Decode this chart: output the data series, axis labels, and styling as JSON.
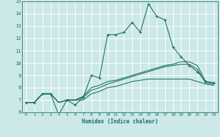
{
  "title": "",
  "xlabel": "Humidex (Indice chaleur)",
  "ylabel": "",
  "xlim": [
    -0.5,
    23.5
  ],
  "ylim": [
    6,
    15
  ],
  "xticks": [
    0,
    1,
    2,
    3,
    4,
    5,
    6,
    7,
    8,
    9,
    10,
    11,
    12,
    13,
    14,
    15,
    16,
    17,
    18,
    19,
    20,
    21,
    22,
    23
  ],
  "yticks": [
    6,
    7,
    8,
    9,
    10,
    11,
    12,
    13,
    14,
    15
  ],
  "bg_color": "#cce8e8",
  "line_color": "#1a6e64",
  "grid_color": "#b0d8d8",
  "lines": [
    {
      "x": [
        0,
        1,
        2,
        3,
        4,
        5,
        6,
        7,
        8,
        9,
        10,
        11,
        12,
        13,
        14,
        15,
        16,
        17,
        18,
        19,
        20,
        21,
        22,
        23
      ],
      "y": [
        6.8,
        6.8,
        7.5,
        7.5,
        5.8,
        7.0,
        6.6,
        7.2,
        9.0,
        8.8,
        12.3,
        12.3,
        12.5,
        13.3,
        12.5,
        14.8,
        13.8,
        13.5,
        11.3,
        10.5,
        9.8,
        9.3,
        8.5,
        8.4
      ],
      "marker": true
    },
    {
      "x": [
        0,
        1,
        2,
        3,
        4,
        5,
        6,
        7,
        8,
        9,
        10,
        11,
        12,
        13,
        14,
        15,
        16,
        17,
        18,
        19,
        20,
        21,
        22,
        23
      ],
      "y": [
        6.8,
        6.8,
        7.5,
        7.5,
        6.8,
        7.0,
        7.0,
        7.3,
        8.0,
        8.2,
        8.5,
        8.6,
        8.8,
        9.0,
        9.2,
        9.4,
        9.6,
        9.8,
        9.9,
        10.1,
        10.1,
        9.8,
        8.5,
        8.4
      ],
      "marker": false
    },
    {
      "x": [
        0,
        1,
        2,
        3,
        4,
        5,
        6,
        7,
        8,
        9,
        10,
        11,
        12,
        13,
        14,
        15,
        16,
        17,
        18,
        19,
        20,
        21,
        22,
        23
      ],
      "y": [
        6.8,
        6.8,
        7.5,
        7.5,
        6.8,
        7.0,
        7.0,
        7.2,
        7.8,
        8.0,
        8.3,
        8.5,
        8.7,
        8.9,
        9.1,
        9.3,
        9.5,
        9.7,
        9.8,
        9.9,
        9.9,
        9.5,
        8.4,
        8.3
      ],
      "marker": false
    },
    {
      "x": [
        0,
        1,
        2,
        3,
        4,
        5,
        6,
        7,
        8,
        9,
        10,
        11,
        12,
        13,
        14,
        15,
        16,
        17,
        18,
        19,
        20,
        21,
        22,
        23
      ],
      "y": [
        6.8,
        6.8,
        7.5,
        7.5,
        6.8,
        7.0,
        7.0,
        7.0,
        7.5,
        7.7,
        8.0,
        8.1,
        8.3,
        8.5,
        8.6,
        8.7,
        8.7,
        8.7,
        8.7,
        8.7,
        8.7,
        8.5,
        8.3,
        8.2
      ],
      "marker": false
    }
  ]
}
